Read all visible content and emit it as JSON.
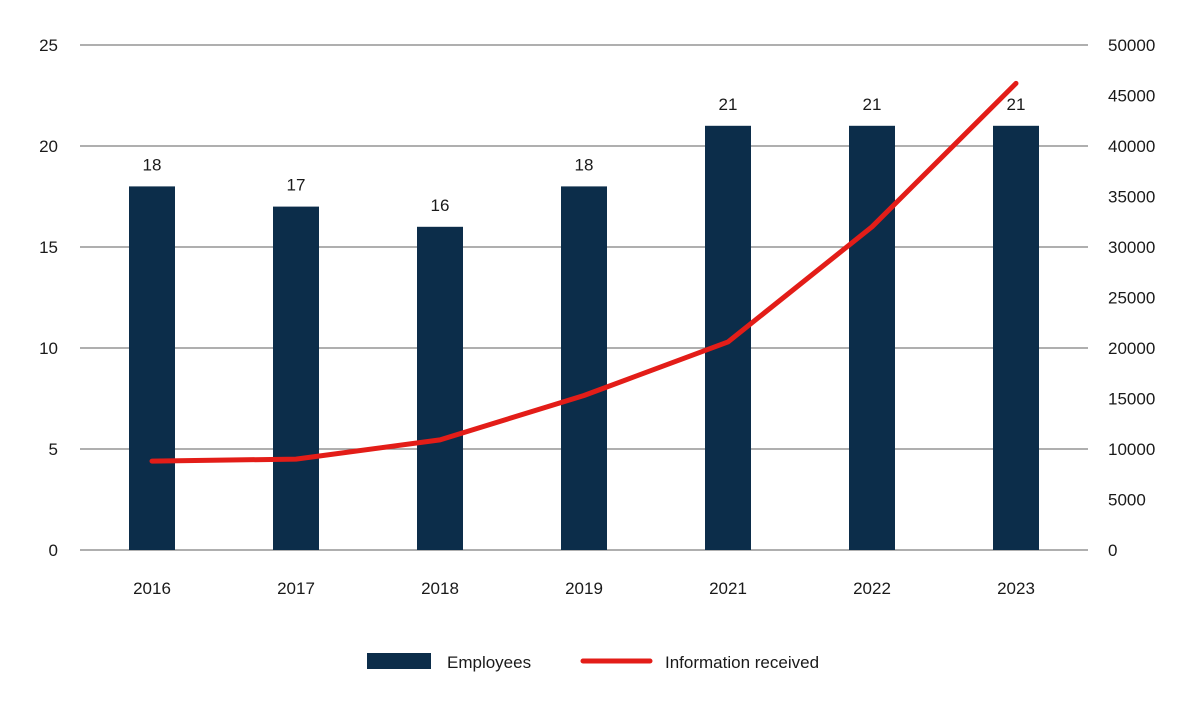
{
  "chart_data": {
    "type": "bar+line",
    "categories": [
      "2016",
      "2017",
      "2018",
      "2019",
      "2021",
      "2022",
      "2023"
    ],
    "series": [
      {
        "name": "Employees",
        "type": "bar",
        "axis": "left",
        "values": [
          18,
          17,
          16,
          18,
          21,
          21,
          21
        ],
        "color": "#0c2d4a",
        "labels": [
          "18",
          "17",
          "16",
          "18",
          "21",
          "21",
          "21"
        ]
      },
      {
        "name": "Information received",
        "type": "line",
        "axis": "right",
        "values": [
          8800,
          9000,
          10900,
          15300,
          20600,
          32000,
          46200
        ],
        "color": "#e31d18"
      }
    ],
    "y_left": {
      "range": [
        0,
        25
      ],
      "ticks": [
        "0",
        "5",
        "10",
        "15",
        "20",
        "25"
      ]
    },
    "y_right": {
      "range": [
        0,
        50000
      ],
      "ticks": [
        "0",
        "5000",
        "10000",
        "15000",
        "20000",
        "25000",
        "30000",
        "35000",
        "40000",
        "45000",
        "50000"
      ]
    },
    "grid": true,
    "legend_position": "bottom"
  }
}
